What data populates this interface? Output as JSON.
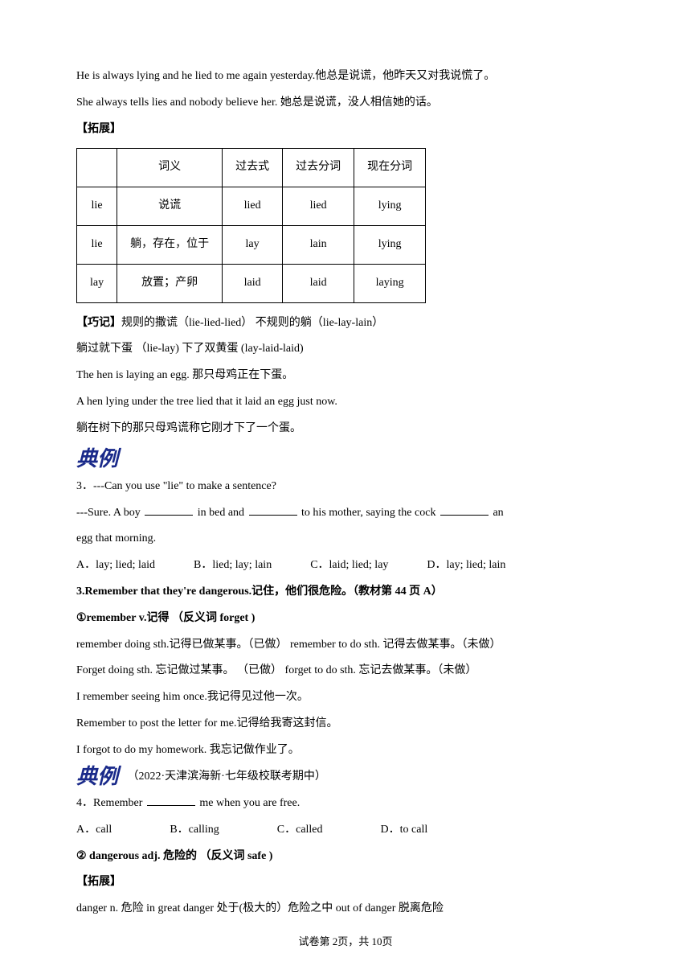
{
  "intro": {
    "line1": "He is always lying and he lied to me again yesterday.他总是说谎，他昨天又对我说慌了。",
    "line2": "She always tells lies and nobody believe her.  她总是说谎，没人相信她的话。"
  },
  "expand1_tag": "【拓展】",
  "table": {
    "headers": [
      "",
      "词义",
      "过去式",
      "过去分词",
      "现在分词"
    ],
    "rows": [
      [
        "lie",
        "说谎",
        "lied",
        "lied",
        "lying"
      ],
      [
        "lie",
        "躺，存在，位于",
        "lay",
        "lain",
        "lying"
      ],
      [
        "lay",
        "放置；产卵",
        "laid",
        "laid",
        "laying"
      ]
    ],
    "border_color": "#000000",
    "cell_padding": 8
  },
  "qiaoji": {
    "tag": "【巧记】",
    "text": "规则的撒谎（lie-lied-lied）  不规则的躺（lie-lay-lain）",
    "line2": "躺过就下蛋 （lie-lay)      下了双黄蛋  (lay-laid-laid)",
    "line3": "The hen is laying an egg.  那只母鸡正在下蛋。",
    "line4": "A hen lying under the tree lied that it laid an egg just now.",
    "line5": "躺在树下的那只母鸡谎称它刚才下了一个蛋。"
  },
  "dianli_label": "典例",
  "q3": {
    "number": "3．",
    "question_part1": "---Can you use \"lie\" to make a sentence?",
    "answer_pre": "---Sure. A boy ",
    "answer_mid1": " in bed and ",
    "answer_mid2": " to his mother, saying the cock ",
    "answer_post": " an",
    "line2": "egg that morning.",
    "options": [
      "A．lay; lied; laid",
      "B．lied; lay; lain",
      "C．laid; lied; lay",
      "D．lay; lied; lain"
    ]
  },
  "section3": {
    "title": "3.Remember that they're dangerous.记住，他们很危险。（教材第 44 页  A）",
    "remember_label": "①remember v.记得  （反义词   forget )",
    "line1": "remember doing sth.记得已做某事。（已做）   remember to do sth.  记得去做某事。（未做）",
    "line2": "Forget doing sth.  忘记做过某事。  （已做）   forget to do sth.  忘记去做某事。（未做）",
    "line3": "I remember seeing him once.我记得见过他一次。",
    "line4": "Remember to post the letter for me.记得给我寄这封信。",
    "line5": "I forgot to do my homework.  我忘记做作业了。"
  },
  "q4": {
    "source": "（2022·天津滨海新·七年级校联考期中）",
    "number": "4．",
    "question_pre": "Remember ",
    "question_post": " me when you are free.",
    "options": [
      "A．call",
      "B．calling",
      "C．called",
      "D．to call"
    ]
  },
  "dangerous": {
    "label": "② dangerous adj.  危险的  （反义词  safe )",
    "expand_tag": "【拓展】",
    "line1": "danger n.  危险   in  great danger  处于(极大的）危险之中     out of danger  脱离危险"
  },
  "footer": "试卷第 2页，共 10页"
}
